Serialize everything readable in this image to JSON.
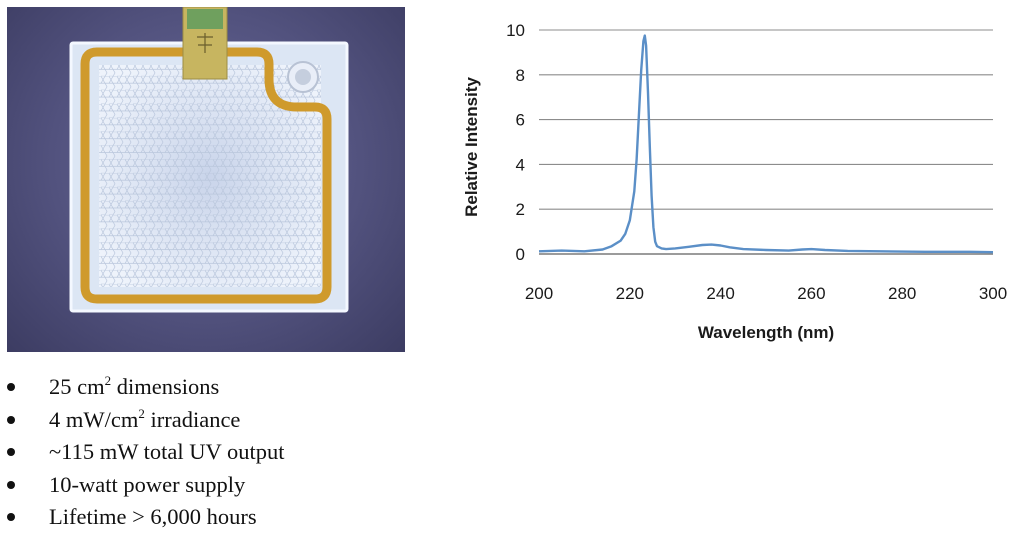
{
  "colors": {
    "line": "#5b8fc7",
    "grid": "#8c8c8c",
    "lamp_trace": "#cf9a2c",
    "lamp_panel": "#e7eef8",
    "connector": "#c7b560"
  },
  "photo": {
    "connector_icon": "connector-tab-icon",
    "mounting_hole_icon": "mounting-hole-icon"
  },
  "bullets": [
    {
      "pre": "25 cm",
      "sup": "2",
      "post": " dimensions"
    },
    {
      "pre": "4 mW/cm",
      "sup": "2",
      "post": " irradiance"
    },
    {
      "pre": "~115 mW total UV output",
      "sup": "",
      "post": ""
    },
    {
      "pre": "10-watt power supply",
      "sup": "",
      "post": ""
    },
    {
      "pre": "Lifetime > 6,000 hours",
      "sup": "",
      "post": ""
    }
  ],
  "chart_data": {
    "type": "line",
    "title": "",
    "xlabel": "Wavelength (nm)",
    "ylabel": "Relative Intensity",
    "xlim": [
      200,
      300
    ],
    "ylim": [
      0,
      10
    ],
    "xticks": [
      200,
      220,
      240,
      260,
      280,
      300
    ],
    "yticks": [
      0,
      2,
      4,
      6,
      8,
      10
    ],
    "grid": "horizontal",
    "legend": "none",
    "series": [
      {
        "x": [
          200,
          205,
          210,
          214,
          216,
          218,
          219,
          220,
          221,
          221.5,
          222,
          222.5,
          223,
          223.3,
          223.6,
          224,
          224.4,
          224.8,
          225.2,
          225.6,
          226,
          227,
          228,
          230,
          233,
          236,
          238,
          240,
          242,
          245,
          250,
          255,
          258,
          260,
          263,
          268,
          275,
          285,
          295,
          300
        ],
        "y": [
          0.12,
          0.15,
          0.12,
          0.2,
          0.35,
          0.6,
          0.9,
          1.5,
          2.8,
          4.2,
          6.2,
          8.2,
          9.5,
          9.75,
          9.3,
          7.2,
          4.8,
          2.6,
          1.2,
          0.55,
          0.35,
          0.25,
          0.22,
          0.25,
          0.32,
          0.4,
          0.42,
          0.38,
          0.3,
          0.22,
          0.18,
          0.15,
          0.2,
          0.22,
          0.18,
          0.14,
          0.12,
          0.1,
          0.1,
          0.08
        ]
      }
    ]
  }
}
